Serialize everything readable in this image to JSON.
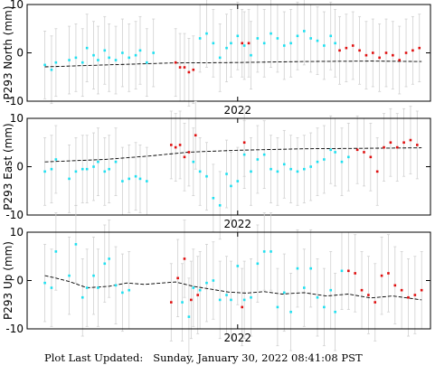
{
  "footer": {
    "label": "Plot Last Updated:",
    "value": "Sunday, January 30, 2022 08:41:08 PST"
  },
  "colors": {
    "early": "#1fe0f0",
    "recent": "#e01010",
    "errorbar": "#d0d0d0",
    "trend": "#000000"
  },
  "chart_data": [
    {
      "type": "scatter",
      "ylabel": "P293 North (mm)",
      "xtick": {
        "label": "2022",
        "x": 2022.0
      },
      "xlim": [
        2021.05,
        2022.87
      ],
      "ylim": [
        -10,
        10
      ],
      "yticks": [
        -10,
        0,
        10
      ],
      "grid": false,
      "errorbar": 7,
      "series": [
        {
          "color": "early",
          "x": [
            2021.13,
            2021.16,
            2021.18,
            2021.24,
            2021.27,
            2021.3,
            2021.32,
            2021.35,
            2021.37,
            2021.4,
            2021.42,
            2021.45,
            2021.48,
            2021.51,
            2021.54,
            2021.56,
            2021.59,
            2021.62,
            2021.83,
            2021.86,
            2021.89,
            2021.92,
            2021.95,
            2021.97,
            2022.0,
            2022.03,
            2022.06,
            2022.09,
            2022.12,
            2022.15,
            2022.18,
            2022.21,
            2022.24,
            2022.27,
            2022.3,
            2022.33,
            2022.36,
            2022.39,
            2022.42,
            2022.44
          ],
          "y": [
            -2.5,
            -3.5,
            -2.0,
            -1.5,
            -1.0,
            -2.0,
            1.0,
            -0.5,
            -1.5,
            0.5,
            -1.0,
            -1.5,
            0.0,
            -1.0,
            -0.5,
            0.5,
            -2.0,
            0.0,
            3.0,
            4.0,
            2.0,
            -1.0,
            1.0,
            2.0,
            3.5,
            1.5,
            -0.5,
            3.0,
            2.0,
            4.0,
            3.0,
            1.5,
            2.0,
            3.5,
            4.5,
            3.0,
            2.5,
            1.5,
            3.5,
            2.0
          ]
        },
        {
          "color": "recent",
          "x": [
            2021.72,
            2021.74,
            2021.76,
            2021.78,
            2021.8,
            2022.02,
            2022.05,
            2022.46,
            2022.49,
            2022.52,
            2022.55,
            2022.58,
            2022.61,
            2022.64,
            2022.67,
            2022.7,
            2022.73,
            2022.76,
            2022.79,
            2022.82
          ],
          "y": [
            -2.0,
            -3.0,
            -3.0,
            -4.0,
            -3.5,
            2.0,
            2.0,
            0.5,
            1.0,
            1.5,
            0.5,
            -0.5,
            0.0,
            -1.0,
            0.0,
            -0.5,
            -1.5,
            0.0,
            0.5,
            1.0
          ]
        }
      ],
      "trend": {
        "x": [
          2021.13,
          2021.4,
          2021.7,
          2022.0,
          2022.3,
          2022.6,
          2022.83
        ],
        "y": [
          -2.9,
          -2.5,
          -2.1,
          -2.0,
          -1.8,
          -1.7,
          -1.8
        ]
      }
    },
    {
      "type": "scatter",
      "ylabel": "P293 East (mm)",
      "xtick": {
        "label": "2022",
        "x": 2022.0
      },
      "xlim": [
        2021.05,
        2022.87
      ],
      "ylim": [
        -10,
        10
      ],
      "yticks": [
        -10,
        0,
        10
      ],
      "grid": false,
      "errorbar": 7,
      "series": [
        {
          "color": "early",
          "x": [
            2021.13,
            2021.16,
            2021.18,
            2021.24,
            2021.27,
            2021.3,
            2021.32,
            2021.35,
            2021.37,
            2021.4,
            2021.42,
            2021.45,
            2021.48,
            2021.51,
            2021.54,
            2021.56,
            2021.59,
            2021.8,
            2021.83,
            2021.86,
            2021.89,
            2021.92,
            2021.95,
            2021.97,
            2022.0,
            2022.03,
            2022.06,
            2022.09,
            2022.12,
            2022.15,
            2022.18,
            2022.21,
            2022.24,
            2022.27,
            2022.3,
            2022.33,
            2022.36,
            2022.39,
            2022.42,
            2022.44,
            2022.47,
            2022.5
          ],
          "y": [
            -1.0,
            -0.5,
            1.5,
            -2.5,
            -1.0,
            -0.5,
            -0.5,
            0.0,
            1.0,
            -1.0,
            -0.5,
            1.0,
            -3.0,
            -2.5,
            -2.0,
            -2.5,
            -3.0,
            1.0,
            -1.0,
            -2.0,
            -6.5,
            -8.0,
            -1.5,
            -4.0,
            -3.0,
            2.5,
            -1.0,
            1.5,
            2.5,
            -0.5,
            -1.0,
            0.5,
            -0.5,
            -1.0,
            -0.5,
            0.0,
            1.0,
            1.5,
            3.5,
            3.0,
            1.0,
            2.0
          ]
        },
        {
          "color": "recent",
          "x": [
            2021.7,
            2021.72,
            2021.74,
            2021.76,
            2021.78,
            2021.81,
            2022.03,
            2022.54,
            2022.57,
            2022.6,
            2022.63,
            2022.66,
            2022.69,
            2022.72,
            2022.75,
            2022.78,
            2022.81
          ],
          "y": [
            4.5,
            4.0,
            4.5,
            2.0,
            3.0,
            6.5,
            5.0,
            3.5,
            3.0,
            2.0,
            -1.0,
            4.0,
            5.0,
            4.0,
            5.0,
            5.5,
            4.5
          ]
        }
      ],
      "trend": {
        "x": [
          2021.13,
          2021.4,
          2021.6,
          2021.78,
          2022.0,
          2022.3,
          2022.55,
          2022.83
        ],
        "y": [
          1.0,
          1.5,
          2.2,
          3.0,
          3.4,
          3.7,
          3.8,
          3.9
        ]
      }
    },
    {
      "type": "scatter",
      "ylabel": "P293 Up (mm)",
      "xtick": {
        "label": "2022",
        "x": 2022.0
      },
      "xlim": [
        2021.05,
        2022.87
      ],
      "ylim": [
        -10,
        10
      ],
      "yticks": [
        -10,
        0,
        10
      ],
      "grid": false,
      "errorbar": 8,
      "series": [
        {
          "color": "early",
          "x": [
            2021.13,
            2021.16,
            2021.18,
            2021.24,
            2021.27,
            2021.3,
            2021.32,
            2021.35,
            2021.37,
            2021.4,
            2021.42,
            2021.45,
            2021.48,
            2021.51,
            2021.75,
            2021.78,
            2021.8,
            2021.83,
            2021.86,
            2021.89,
            2021.92,
            2021.95,
            2021.97,
            2022.0,
            2022.03,
            2022.06,
            2022.09,
            2022.12,
            2022.15,
            2022.18,
            2022.21,
            2022.24,
            2022.27,
            2022.3,
            2022.33,
            2022.36,
            2022.39,
            2022.42,
            2022.44,
            2022.47
          ],
          "y": [
            -0.5,
            -1.5,
            6.0,
            1.0,
            7.5,
            -3.5,
            -1.5,
            1.0,
            -1.5,
            3.5,
            4.5,
            -1.0,
            -2.5,
            -2.0,
            -4.5,
            -7.5,
            -1.5,
            -2.0,
            -0.5,
            0.0,
            -4.0,
            -3.0,
            -4.0,
            3.0,
            -4.0,
            -3.5,
            3.5,
            6.0,
            6.0,
            -5.5,
            -2.5,
            -6.5,
            2.5,
            -1.5,
            2.5,
            -3.5,
            -5.5,
            -2.0,
            -6.5,
            2.0
          ]
        },
        {
          "color": "recent",
          "x": [
            2021.7,
            2021.73,
            2021.76,
            2021.79,
            2021.82,
            2022.02,
            2022.5,
            2022.53,
            2022.56,
            2022.59,
            2022.62,
            2022.65,
            2022.68,
            2022.71,
            2022.74,
            2022.77,
            2022.8,
            2022.83
          ],
          "y": [
            -4.5,
            0.5,
            4.5,
            -4.0,
            -3.0,
            -5.5,
            2.0,
            1.5,
            -2.0,
            -3.0,
            -4.5,
            1.0,
            1.5,
            -1.0,
            -2.0,
            -3.5,
            -3.0,
            -2.0
          ]
        }
      ],
      "trend": {
        "x": [
          2021.13,
          2021.18,
          2021.24,
          2021.32,
          2021.42,
          2021.5,
          2021.58,
          2021.66,
          2021.72,
          2021.8,
          2021.88,
          2021.96,
          2022.04,
          2022.12,
          2022.2,
          2022.3,
          2022.4,
          2022.5,
          2022.6,
          2022.7,
          2022.83
        ],
        "y": [
          1.0,
          0.5,
          -0.2,
          -1.5,
          -1.2,
          -0.5,
          -0.8,
          -0.5,
          -0.3,
          -1.2,
          -1.8,
          -2.4,
          -2.6,
          -2.3,
          -2.8,
          -2.5,
          -3.2,
          -2.8,
          -3.6,
          -3.2,
          -4.0
        ]
      }
    }
  ]
}
